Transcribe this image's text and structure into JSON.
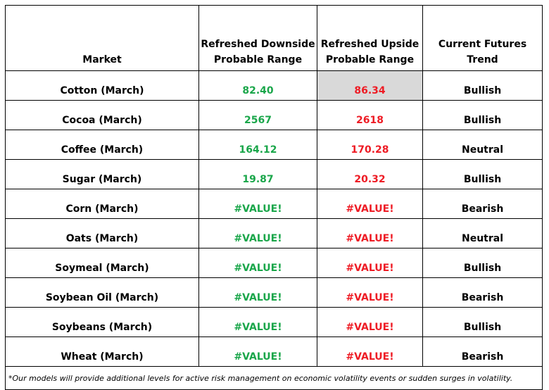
{
  "table": {
    "headers": {
      "market": "Market",
      "downside_line1": "Refreshed Downside",
      "downside_line2": "Probable Range",
      "upside_line1": "Refreshed Upside",
      "upside_line2": "Probable Range",
      "trend": "Current Futures Trend"
    },
    "rows": [
      {
        "market": "Cotton (March)",
        "downside": "82.40",
        "upside": "86.34",
        "trend": "Bullish"
      },
      {
        "market": "Cocoa (March)",
        "downside": "2567",
        "upside": "2618",
        "trend": "Bullish"
      },
      {
        "market": "Coffee (March)",
        "downside": "164.12",
        "upside": "170.28",
        "trend": "Neutral"
      },
      {
        "market": "Sugar (March)",
        "downside": "19.87",
        "upside": "20.32",
        "trend": "Bullish"
      },
      {
        "market": "Corn (March)",
        "downside": "#VALUE!",
        "upside": "#VALUE!",
        "trend": "Bearish"
      },
      {
        "market": "Oats (March)",
        "downside": "#VALUE!",
        "upside": "#VALUE!",
        "trend": "Neutral"
      },
      {
        "market": "Soymeal (March)",
        "downside": "#VALUE!",
        "upside": "#VALUE!",
        "trend": "Bullish"
      },
      {
        "market": "Soybean Oil (March)",
        "downside": "#VALUE!",
        "upside": "#VALUE!",
        "trend": "Bearish"
      },
      {
        "market": "Soybeans (March)",
        "downside": "#VALUE!",
        "upside": "#VALUE!",
        "trend": "Bullish"
      },
      {
        "market": "Wheat (March)",
        "downside": "#VALUE!",
        "upside": "#VALUE!",
        "trend": "Bearish"
      }
    ],
    "footnote": "*Our models will provide additional levels for active risk management on economic volatility events or sudden surges in volatility."
  },
  "colors": {
    "downside": "#1aa64a",
    "upside": "#ee1c25",
    "selected_cell": "#d9d9d9"
  }
}
